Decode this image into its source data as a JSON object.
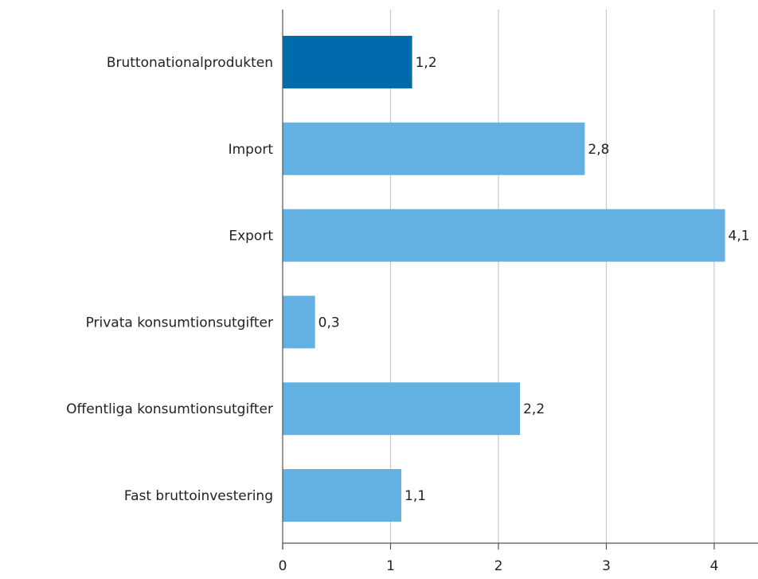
{
  "chart_data": {
    "type": "bar",
    "orientation": "horizontal",
    "title": "",
    "xlabel": "",
    "ylabel": "",
    "categories": [
      "Bruttonationalprodukten",
      "Import",
      "Export",
      "Privata konsumtionsutgifter",
      "Offentliga konsumtionsutgifter",
      "Fast bruttoinvestering"
    ],
    "values": [
      1.2,
      2.8,
      4.1,
      0.3,
      2.2,
      1.1
    ],
    "value_labels": [
      "1,2",
      "2,8",
      "4,1",
      "0,3",
      "2,2",
      "1,1"
    ],
    "xlim": [
      0,
      4.4
    ],
    "xticks": [
      0,
      1,
      2,
      3,
      4
    ],
    "xtick_labels": [
      "0",
      "1",
      "2",
      "3",
      "4"
    ],
    "grid": true,
    "legend": "none",
    "colors": {
      "highlight": "#006bac",
      "bar": "#63b0e3",
      "grid": "#c8c8c8",
      "axis": "#555555"
    },
    "highlight_index": 0
  }
}
